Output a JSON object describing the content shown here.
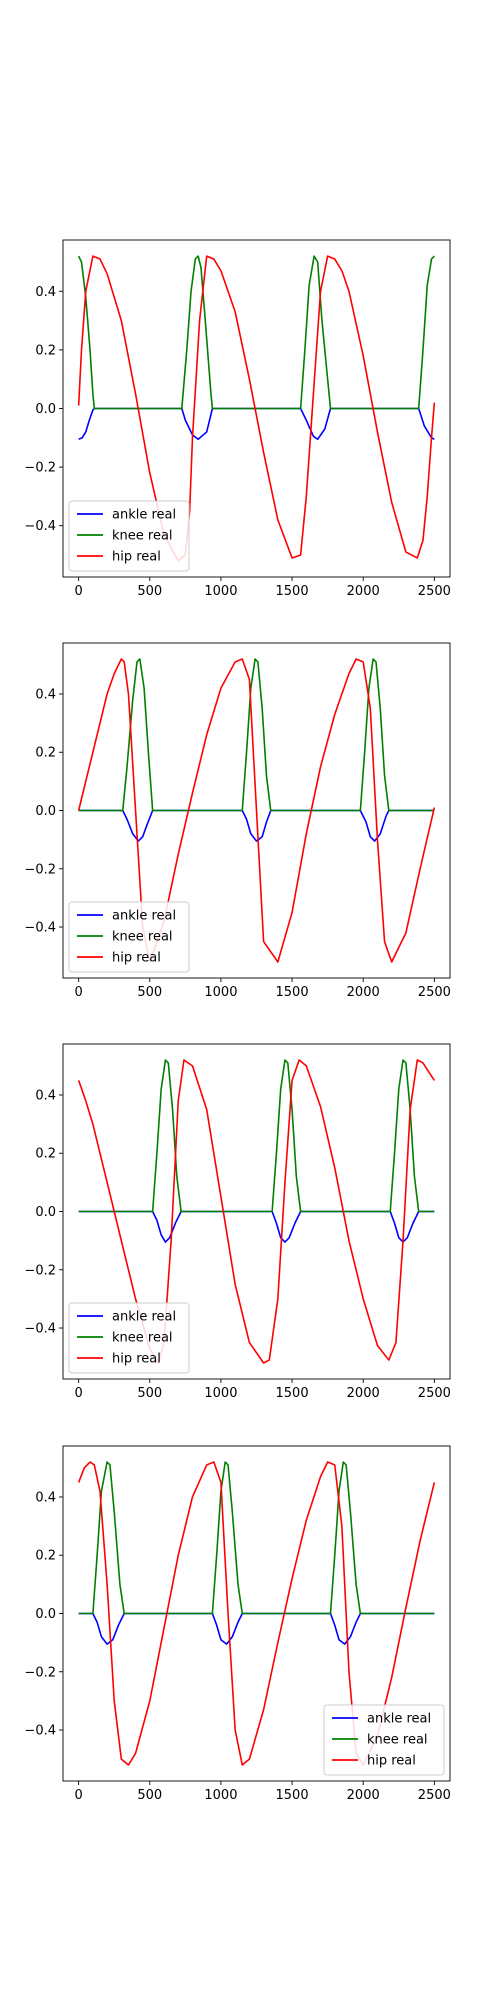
{
  "figure": {
    "background": "#ffffff"
  },
  "chart_data": [
    {
      "type": "line",
      "title": "",
      "xlabel": "",
      "ylabel": "",
      "xlim": [
        -110,
        2610
      ],
      "ylim": [
        -0.575,
        0.575
      ],
      "xticks": [
        0,
        500,
        1000,
        1500,
        2000,
        2500
      ],
      "yticks": [
        -0.4,
        -0.2,
        0.0,
        0.2,
        0.4
      ],
      "grid": false,
      "legend": "lower-left",
      "series": [
        {
          "name": "ankle real",
          "color": "#0000ff",
          "x": [
            0,
            25,
            50,
            75,
            100,
            110,
            725,
            750,
            800,
            840,
            900,
            940,
            1560,
            1600,
            1650,
            1680,
            1730,
            1770,
            2390,
            2430,
            2480,
            2500
          ],
          "y": [
            -0.105,
            -0.1,
            -0.08,
            -0.04,
            -0.005,
            0,
            0,
            -0.04,
            -0.09,
            -0.105,
            -0.08,
            0,
            0,
            -0.04,
            -0.095,
            -0.105,
            -0.07,
            0,
            0,
            -0.06,
            -0.1,
            -0.105
          ]
        },
        {
          "name": "knee real",
          "color": "#008000",
          "x": [
            0,
            20,
            50,
            80,
            100,
            110,
            725,
            760,
            790,
            820,
            840,
            860,
            890,
            930,
            940,
            1560,
            1590,
            1620,
            1655,
            1680,
            1710,
            1760,
            1770,
            2390,
            2420,
            2450,
            2480,
            2500
          ],
          "y": [
            0.52,
            0.5,
            0.38,
            0.2,
            0.05,
            0,
            0,
            0.2,
            0.4,
            0.51,
            0.52,
            0.48,
            0.3,
            0.05,
            0,
            0,
            0.2,
            0.42,
            0.52,
            0.5,
            0.3,
            0.05,
            0,
            0,
            0.2,
            0.42,
            0.51,
            0.52
          ]
        },
        {
          "name": "hip real",
          "color": "#ff0000",
          "x": [
            0,
            20,
            50,
            100,
            150,
            200,
            300,
            400,
            500,
            600,
            700,
            750,
            780,
            800,
            850,
            900,
            950,
            1000,
            1100,
            1200,
            1300,
            1400,
            1500,
            1560,
            1600,
            1650,
            1700,
            1750,
            1800,
            1850,
            1900,
            2000,
            2100,
            2200,
            2300,
            2380,
            2420,
            2450,
            2480,
            2500
          ],
          "y": [
            0.01,
            0.2,
            0.4,
            0.52,
            0.51,
            0.46,
            0.3,
            0.05,
            -0.22,
            -0.43,
            -0.52,
            -0.5,
            -0.35,
            -0.1,
            0.3,
            0.52,
            0.51,
            0.47,
            0.33,
            0.1,
            -0.15,
            -0.38,
            -0.51,
            -0.5,
            -0.3,
            0.05,
            0.4,
            0.52,
            0.51,
            0.47,
            0.4,
            0.18,
            -0.08,
            -0.32,
            -0.49,
            -0.51,
            -0.45,
            -0.3,
            -0.1,
            0.02
          ]
        }
      ]
    },
    {
      "type": "line",
      "title": "",
      "xlabel": "",
      "ylabel": "",
      "xlim": [
        -110,
        2610
      ],
      "ylim": [
        -0.575,
        0.575
      ],
      "xticks": [
        0,
        500,
        1000,
        1500,
        2000,
        2500
      ],
      "yticks": [
        -0.4,
        -0.2,
        0.0,
        0.2,
        0.4
      ],
      "grid": false,
      "legend": "lower-left",
      "series": [
        {
          "name": "ankle real",
          "color": "#0000ff",
          "x": [
            0,
            310,
            340,
            380,
            420,
            450,
            480,
            520,
            1150,
            1180,
            1210,
            1250,
            1290,
            1320,
            1350,
            1980,
            2020,
            2050,
            2080,
            2120,
            2160,
            2180,
            2500
          ],
          "y": [
            0,
            0,
            -0.03,
            -0.08,
            -0.105,
            -0.09,
            -0.05,
            0,
            0,
            -0.03,
            -0.08,
            -0.105,
            -0.09,
            -0.04,
            0,
            0,
            -0.04,
            -0.09,
            -0.105,
            -0.08,
            -0.02,
            0,
            0
          ],
          "_note_hidden": null
        },
        {
          "name": "knee real",
          "color": "#008000",
          "x": [
            0,
            310,
            340,
            380,
            410,
            430,
            460,
            490,
            520,
            1150,
            1180,
            1210,
            1240,
            1260,
            1290,
            1320,
            1350,
            1980,
            2010,
            2040,
            2070,
            2090,
            2120,
            2150,
            2180,
            2500
          ],
          "y": [
            0,
            0,
            0.15,
            0.38,
            0.51,
            0.52,
            0.42,
            0.2,
            0,
            0,
            0.2,
            0.42,
            0.52,
            0.51,
            0.35,
            0.12,
            0,
            0,
            0.2,
            0.42,
            0.52,
            0.51,
            0.35,
            0.12,
            0,
            0
          ]
        },
        {
          "name": "hip real",
          "color": "#ff0000",
          "x": [
            0,
            50,
            100,
            150,
            200,
            250,
            300,
            320,
            350,
            400,
            450,
            500,
            600,
            700,
            800,
            900,
            1000,
            1100,
            1150,
            1200,
            1250,
            1300,
            1400,
            1500,
            1600,
            1700,
            1800,
            1900,
            1950,
            2000,
            2050,
            2100,
            2150,
            2200,
            2300,
            2400,
            2500
          ],
          "y": [
            0,
            0.1,
            0.2,
            0.3,
            0.4,
            0.47,
            0.52,
            0.51,
            0.4,
            0.0,
            -0.4,
            -0.52,
            -0.38,
            -0.15,
            0.06,
            0.26,
            0.42,
            0.51,
            0.52,
            0.45,
            0.0,
            -0.45,
            -0.52,
            -0.35,
            -0.08,
            0.15,
            0.33,
            0.47,
            0.52,
            0.51,
            0.35,
            -0.1,
            -0.45,
            -0.52,
            -0.42,
            -0.2,
            0.01
          ]
        }
      ]
    },
    {
      "type": "line",
      "title": "",
      "xlabel": "",
      "ylabel": "",
      "xlim": [
        -110,
        2610
      ],
      "ylim": [
        -0.575,
        0.575
      ],
      "xticks": [
        0,
        500,
        1000,
        1500,
        2000,
        2500
      ],
      "yticks": [
        -0.4,
        -0.2,
        0.0,
        0.2,
        0.4
      ],
      "grid": false,
      "legend": "lower-left",
      "series": [
        {
          "name": "ankle real",
          "color": "#0000ff",
          "x": [
            0,
            520,
            550,
            580,
            610,
            640,
            680,
            720,
            1360,
            1390,
            1420,
            1450,
            1480,
            1520,
            1560,
            2190,
            2220,
            2250,
            2280,
            2310,
            2350,
            2390,
            2500
          ],
          "y": [
            0,
            0,
            -0.03,
            -0.08,
            -0.105,
            -0.09,
            -0.04,
            0,
            0,
            -0.04,
            -0.09,
            -0.105,
            -0.09,
            -0.04,
            0,
            0,
            -0.04,
            -0.09,
            -0.105,
            -0.09,
            -0.04,
            0,
            0
          ]
        },
        {
          "name": "knee real",
          "color": "#008000",
          "x": [
            0,
            520,
            550,
            580,
            610,
            630,
            660,
            690,
            720,
            1360,
            1390,
            1420,
            1450,
            1470,
            1500,
            1530,
            1560,
            2190,
            2220,
            2250,
            2280,
            2300,
            2330,
            2360,
            2390,
            2500
          ],
          "y": [
            0,
            0,
            0.2,
            0.42,
            0.52,
            0.51,
            0.35,
            0.12,
            0,
            0,
            0.2,
            0.42,
            0.52,
            0.51,
            0.35,
            0.12,
            0,
            0,
            0.2,
            0.42,
            0.52,
            0.51,
            0.35,
            0.12,
            0,
            0
          ]
        },
        {
          "name": "hip real",
          "color": "#ff0000",
          "x": [
            0,
            50,
            100,
            150,
            200,
            250,
            300,
            400,
            500,
            560,
            600,
            650,
            700,
            740,
            800,
            900,
            1000,
            1100,
            1200,
            1300,
            1340,
            1400,
            1450,
            1500,
            1550,
            1600,
            1700,
            1800,
            1900,
            2000,
            2100,
            2180,
            2230,
            2280,
            2330,
            2380,
            2420,
            2460,
            2500
          ],
          "y": [
            0.45,
            0.38,
            0.3,
            0.2,
            0.1,
            0.0,
            -0.1,
            -0.3,
            -0.47,
            -0.52,
            -0.45,
            -0.1,
            0.38,
            0.52,
            0.5,
            0.35,
            0.05,
            -0.25,
            -0.45,
            -0.52,
            -0.51,
            -0.3,
            0.1,
            0.45,
            0.52,
            0.5,
            0.36,
            0.15,
            -0.1,
            -0.3,
            -0.46,
            -0.51,
            -0.45,
            -0.1,
            0.35,
            0.52,
            0.51,
            0.48,
            0.45
          ]
        }
      ]
    },
    {
      "type": "line",
      "title": "",
      "xlabel": "",
      "ylabel": "",
      "xlim": [
        -110,
        2610
      ],
      "ylim": [
        -0.575,
        0.575
      ],
      "xticks": [
        0,
        500,
        1000,
        1500,
        2000,
        2500
      ],
      "yticks": [
        -0.4,
        -0.2,
        0.0,
        0.2,
        0.4
      ],
      "grid": false,
      "legend": "lower-right",
      "series": [
        {
          "name": "ankle real",
          "color": "#0000ff",
          "x": [
            0,
            100,
            130,
            160,
            200,
            240,
            280,
            320,
            940,
            970,
            1000,
            1040,
            1080,
            1120,
            1150,
            1770,
            1800,
            1830,
            1870,
            1910,
            1950,
            1980,
            2500
          ],
          "y": [
            0,
            0,
            -0.03,
            -0.08,
            -0.105,
            -0.09,
            -0.04,
            0,
            0,
            -0.04,
            -0.09,
            -0.105,
            -0.08,
            -0.03,
            0,
            0,
            -0.04,
            -0.09,
            -0.105,
            -0.08,
            -0.03,
            0,
            0
          ]
        },
        {
          "name": "knee real",
          "color": "#008000",
          "x": [
            0,
            100,
            130,
            160,
            200,
            220,
            250,
            290,
            320,
            940,
            970,
            1000,
            1030,
            1050,
            1080,
            1120,
            1150,
            1770,
            1800,
            1830,
            1860,
            1880,
            1910,
            1950,
            1980,
            2500
          ],
          "y": [
            0,
            0,
            0.2,
            0.42,
            0.52,
            0.51,
            0.35,
            0.1,
            0,
            0,
            0.2,
            0.42,
            0.52,
            0.51,
            0.35,
            0.1,
            0,
            0,
            0.2,
            0.42,
            0.52,
            0.51,
            0.35,
            0.1,
            0,
            0
          ]
        },
        {
          "name": "hip real",
          "color": "#ff0000",
          "x": [
            0,
            40,
            80,
            110,
            150,
            200,
            250,
            300,
            350,
            400,
            500,
            600,
            700,
            800,
            900,
            950,
            1000,
            1050,
            1100,
            1150,
            1200,
            1300,
            1400,
            1500,
            1600,
            1700,
            1750,
            1800,
            1850,
            1900,
            1950,
            2000,
            2100,
            2200,
            2300,
            2400,
            2500
          ],
          "y": [
            0.45,
            0.5,
            0.52,
            0.51,
            0.42,
            0.1,
            -0.3,
            -0.5,
            -0.52,
            -0.48,
            -0.3,
            -0.05,
            0.2,
            0.4,
            0.51,
            0.52,
            0.45,
            0.0,
            -0.4,
            -0.52,
            -0.5,
            -0.33,
            -0.1,
            0.12,
            0.32,
            0.47,
            0.52,
            0.51,
            0.3,
            -0.2,
            -0.48,
            -0.52,
            -0.42,
            -0.22,
            0.02,
            0.25,
            0.45
          ]
        }
      ]
    }
  ]
}
